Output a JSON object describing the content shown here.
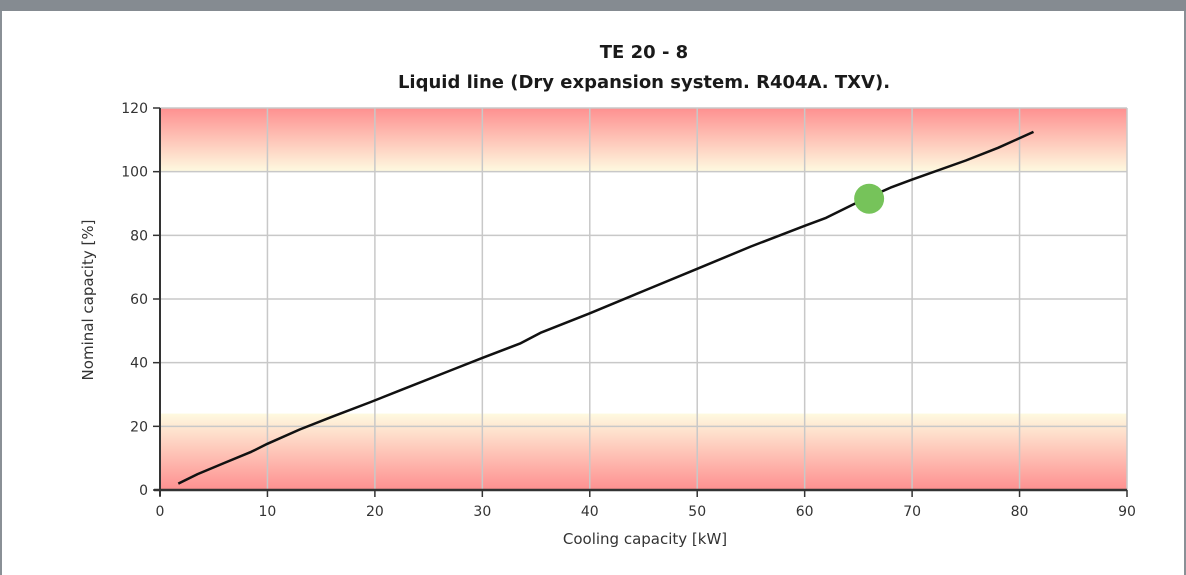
{
  "chart_data": {
    "type": "line",
    "title": "TE 20 - 8",
    "subtitle": "Liquid line (Dry expansion system. R404A. TXV).",
    "xlabel": "Cooling capacity [kW]",
    "ylabel": "Nominal capacity [%]",
    "xlim": [
      0,
      90
    ],
    "ylim": [
      0,
      120
    ],
    "x_ticks": [
      0,
      10,
      20,
      30,
      40,
      50,
      60,
      70,
      80,
      90
    ],
    "y_ticks": [
      0,
      20,
      40,
      60,
      80,
      100,
      120
    ],
    "grid": true,
    "bands": [
      {
        "from": 100,
        "to": 120,
        "color_edge": "#fe9090",
        "color_inner": "#fefae0"
      },
      {
        "from": 0,
        "to": 24,
        "color_edge": "#fe9090",
        "color_inner": "#fefae0"
      }
    ],
    "series": [
      {
        "color": "#111111",
        "x": [
          1.7,
          3.5,
          6,
          8.5,
          10,
          13,
          16,
          19.5,
          22.5,
          27,
          30,
          33.5,
          35.5,
          40,
          45,
          50,
          55,
          60,
          62,
          65,
          68,
          70,
          75,
          78,
          81.3
        ],
        "y": [
          2,
          5,
          8.5,
          12,
          14.5,
          19,
          23,
          27.5,
          31.5,
          37.5,
          41.5,
          46,
          49.5,
          55.5,
          62.5,
          69.5,
          76.5,
          83,
          85.5,
          90.5,
          95,
          97.5,
          103.5,
          107.5,
          112.5
        ]
      }
    ],
    "marker": {
      "x": 66,
      "y": 91.5,
      "color": "#76c35a"
    }
  }
}
